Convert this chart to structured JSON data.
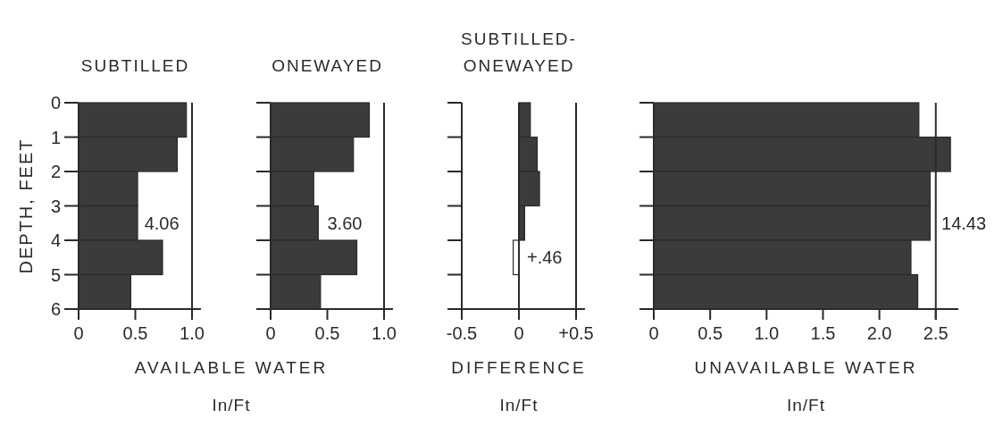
{
  "chart_data": [
    {
      "type": "histogram",
      "orientation": "horizontal",
      "title": "SUBTILLED",
      "ylabel": "DEPTH, FEET",
      "xlabel": "AVAILABLE WATER\nIn/Ft",
      "bins": [
        0,
        1,
        2,
        3,
        4,
        5,
        6
      ],
      "values": [
        0.95,
        0.87,
        0.52,
        0.52,
        0.74,
        0.46
      ],
      "color": "#3b3b3b",
      "xlim": [
        0,
        1
      ],
      "xticks": [
        0,
        0.5,
        {
          "value": 1,
          "label": "1.0"
        }
      ],
      "ylim": [
        6,
        0
      ],
      "yticks": [
        0,
        1,
        2,
        3,
        4,
        5,
        6
      ],
      "annotations": [
        "4.06"
      ]
    },
    {
      "type": "histogram",
      "orientation": "horizontal",
      "title": "ONEWAYED",
      "bins": [
        0,
        1,
        2,
        3,
        4,
        5,
        6
      ],
      "values": [
        0.87,
        0.73,
        0.38,
        0.42,
        0.76,
        0.44
      ],
      "color": "#3b3b3b",
      "xlim": [
        0,
        1
      ],
      "xticks": [
        0,
        0.5,
        {
          "value": 1,
          "label": "1.0"
        }
      ],
      "ylim": [
        6,
        0
      ],
      "yticks": [
        0,
        1,
        2,
        3,
        4,
        5,
        6
      ],
      "tick_labels": "x",
      "annotations": [
        "3.60"
      ]
    },
    {
      "type": "histogram",
      "orientation": "horizontal",
      "title": "SUBTILLED-ONEWAYED",
      "xlabel": "DIFFERENCE\nIn/Ft",
      "bins": [
        0,
        1,
        2,
        3,
        4,
        5,
        6
      ],
      "values": [
        0.1,
        0.16,
        0.18,
        0.05,
        -0.05,
        0
      ],
      "colors": [
        "#3b3b3b",
        "#3b3b3b",
        "#3b3b3b",
        "#3b3b3b",
        "#ffffff",
        "#3b3b3b"
      ],
      "xlim": [
        -0.5,
        0.5
      ],
      "xticks": [
        -0.5,
        0,
        {
          "value": 0.5,
          "label": "+0.5"
        }
      ],
      "ylim": [
        6,
        0
      ],
      "yticks": [
        0,
        1,
        2,
        3,
        4,
        5,
        6
      ],
      "tick_labels": "x",
      "annotations": [
        "+.46"
      ]
    },
    {
      "type": "histogram",
      "orientation": "horizontal",
      "xlabel": "UNAVAILABLE WATER\nIn/Ft",
      "bins": [
        0,
        1,
        2,
        3,
        4,
        5,
        6
      ],
      "values": [
        2.35,
        2.63,
        2.45,
        2.45,
        2.28,
        2.34
      ],
      "color": "#3b3b3b",
      "xlim": [
        0,
        2.7
      ],
      "xticks": [
        0,
        0.5,
        {
          "value": 1,
          "label": "1.0"
        },
        1.5,
        {
          "value": 2,
          "label": "2.0"
        },
        2.5
      ],
      "ylim": [
        6,
        0
      ],
      "yticks": [
        0,
        1,
        2,
        3,
        4,
        5,
        6
      ],
      "tick_labels": "x",
      "annotations": [
        "14.43"
      ]
    }
  ]
}
